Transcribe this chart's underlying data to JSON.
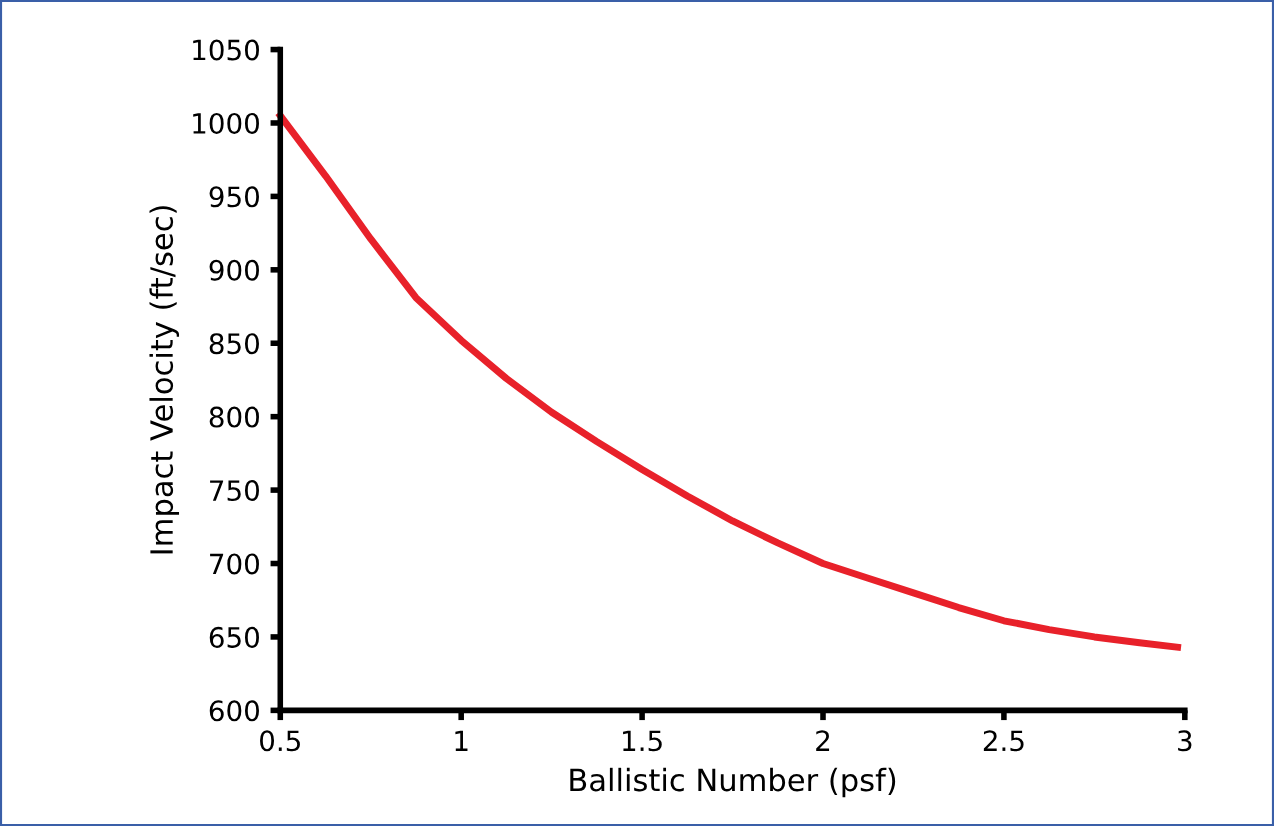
{
  "chart_data": {
    "type": "line",
    "xlabel": "Ballistic Number (psf)",
    "ylabel": "Impact Velocity (ft/sec)",
    "x": [
      0.5,
      0.625,
      0.75,
      0.875,
      1,
      1.125,
      1.25,
      1.375,
      1.5,
      1.625,
      1.75,
      1.875,
      2,
      2.125,
      2.25,
      2.375,
      2.5,
      2.625,
      2.75,
      2.875,
      2.98
    ],
    "series": [
      {
        "color": "#e8212a",
        "values": [
          1005,
          964,
          921,
          881,
          852,
          826,
          803,
          783,
          764,
          746,
          729,
          714,
          700,
          690,
          680,
          670,
          661,
          655,
          650,
          646,
          643
        ]
      }
    ],
    "xlim": [
      0.5,
      3
    ],
    "xticks": [
      0.5,
      1,
      1.5,
      2,
      2.5,
      3
    ],
    "ylim": [
      600,
      1050
    ],
    "yticks": [
      600,
      650,
      700,
      750,
      800,
      850,
      900,
      950,
      1000,
      1050
    ],
    "grid": false,
    "legend": false,
    "marker": "none",
    "line_style": "solid"
  }
}
